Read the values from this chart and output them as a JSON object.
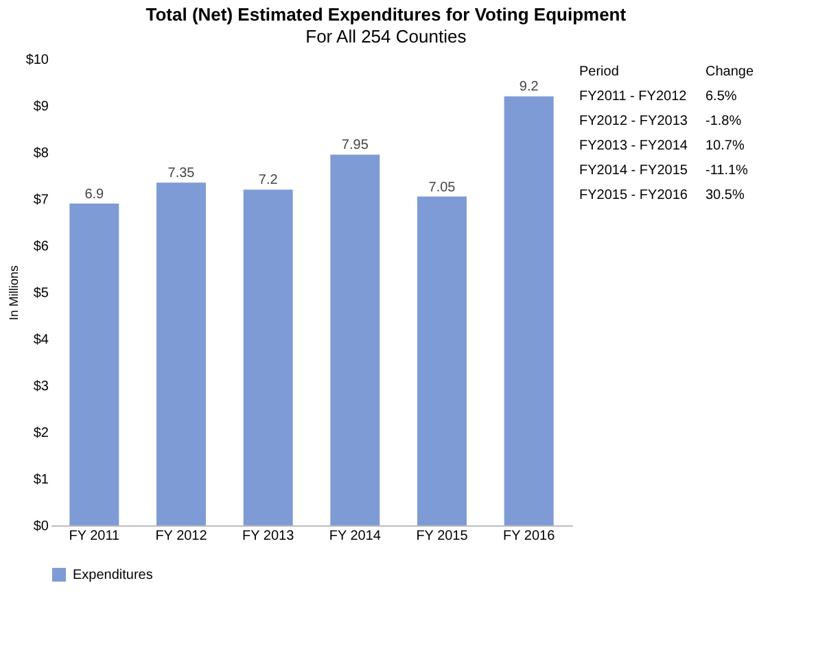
{
  "chart_data": {
    "type": "bar",
    "title": "Total (Net) Estimated Expenditures for Voting Equipment",
    "subtitle": "For All 254 Counties",
    "ylabel": "In Millions",
    "categories": [
      "FY 2011",
      "FY 2012",
      "FY 2013",
      "FY 2014",
      "FY 2015",
      "FY 2016"
    ],
    "series": [
      {
        "name": "Expenditures",
        "color": "#7f9bd6",
        "values": [
          6.9,
          7.35,
          7.2,
          7.95,
          7.05,
          9.2
        ]
      }
    ],
    "ylim": [
      0,
      10
    ],
    "yticks": [
      {
        "value": 0,
        "label": "$0"
      },
      {
        "value": 1,
        "label": "$1"
      },
      {
        "value": 2,
        "label": "$2"
      },
      {
        "value": 3,
        "label": "$3"
      },
      {
        "value": 4,
        "label": "$4"
      },
      {
        "value": 5,
        "label": "$5"
      },
      {
        "value": 6,
        "label": "$6"
      },
      {
        "value": 7,
        "label": "$7"
      },
      {
        "value": 8,
        "label": "$8"
      },
      {
        "value": 9,
        "label": "$9"
      },
      {
        "value": 10,
        "label": "$10"
      }
    ],
    "data_labels": true,
    "legend": "bottom",
    "grid": false,
    "annotations": [
      "Period",
      "Change",
      "FY2011 - FY2012",
      "6.5%",
      "FY2012 - FY2013",
      "-1.8%",
      "FY2013 - FY2014",
      "10.7%",
      "FY2014 - FY2015",
      "-11.1%",
      "FY2015 - FY2016",
      "30.5%"
    ]
  }
}
